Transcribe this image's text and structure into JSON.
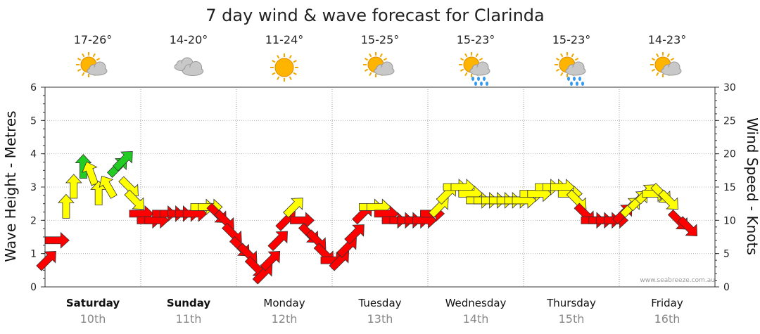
{
  "chart_data": {
    "type": "line",
    "title": "7 day wind & wave forecast for Clarinda",
    "ylabel_left": "Wave Height - Metres",
    "ylabel_right": "Wind Speed - Knots",
    "y_left_range": [
      0,
      6
    ],
    "y_left_ticks": [
      "0",
      "1",
      "2",
      "3",
      "4",
      "5",
      "6"
    ],
    "y_right_range": [
      0,
      30
    ],
    "y_right_ticks": [
      "0",
      "5",
      "10",
      "15",
      "20",
      "25",
      "30"
    ],
    "grid": true,
    "watermark": "www.seabreeze.com.au",
    "days": [
      {
        "day": "Saturday",
        "date": "10th",
        "temp": "17-26°",
        "icon": "partly-cloudy-icon",
        "bold": true
      },
      {
        "day": "Sunday",
        "date": "11th",
        "temp": "14-20°",
        "icon": "cloudy-icon",
        "bold": true
      },
      {
        "day": "Monday",
        "date": "12th",
        "temp": "11-24°",
        "icon": "sunny-icon",
        "bold": false
      },
      {
        "day": "Tuesday",
        "date": "13th",
        "temp": "15-25°",
        "icon": "partly-cloudy-icon",
        "bold": false
      },
      {
        "day": "Wednesday",
        "date": "14th",
        "temp": "15-23°",
        "icon": "showers-icon",
        "bold": false
      },
      {
        "day": "Thursday",
        "date": "15th",
        "temp": "15-23°",
        "icon": "showers-icon",
        "bold": false
      },
      {
        "day": "Friday",
        "date": "16th",
        "temp": "14-23°",
        "icon": "partly-cloudy-icon",
        "bold": false
      }
    ],
    "wind_series": {
      "name": "Wind Speed",
      "units": "knots",
      "colors": {
        "light": "#ff0000",
        "moderate": "#ffff00",
        "strong": "#22cc22"
      },
      "points": [
        {
          "t": 0.02,
          "speed": 4,
          "dir": 45,
          "color": "#ff0000"
        },
        {
          "t": 0.12,
          "speed": 7,
          "dir": 0,
          "color": "#ff0000"
        },
        {
          "t": 0.22,
          "speed": 12,
          "dir": 90,
          "color": "#ffff00"
        },
        {
          "t": 0.3,
          "speed": 15,
          "dir": 90,
          "color": "#ffff00"
        },
        {
          "t": 0.4,
          "speed": 18,
          "dir": 90,
          "color": "#22cc22"
        },
        {
          "t": 0.48,
          "speed": 17,
          "dir": 110,
          "color": "#ffff00"
        },
        {
          "t": 0.56,
          "speed": 14,
          "dir": 90,
          "color": "#ffff00"
        },
        {
          "t": 0.66,
          "speed": 15,
          "dir": 120,
          "color": "#ffff00"
        },
        {
          "t": 0.76,
          "speed": 18,
          "dir": 45,
          "color": "#22cc22"
        },
        {
          "t": 0.82,
          "speed": 19,
          "dir": 45,
          "color": "#22cc22"
        },
        {
          "t": 0.88,
          "speed": 15,
          "dir": 315,
          "color": "#ffff00"
        },
        {
          "t": 0.94,
          "speed": 13,
          "dir": 315,
          "color": "#ffff00"
        },
        {
          "t": 1.0,
          "speed": 11,
          "dir": 0,
          "color": "#ff0000"
        },
        {
          "t": 1.08,
          "speed": 10,
          "dir": 0,
          "color": "#ff0000"
        },
        {
          "t": 1.16,
          "speed": 10,
          "dir": 0,
          "color": "#ff0000"
        },
        {
          "t": 1.24,
          "speed": 11,
          "dir": 0,
          "color": "#ff0000"
        },
        {
          "t": 1.32,
          "speed": 11,
          "dir": 0,
          "color": "#ff0000"
        },
        {
          "t": 1.4,
          "speed": 11,
          "dir": 0,
          "color": "#ff0000"
        },
        {
          "t": 1.48,
          "speed": 11,
          "dir": 0,
          "color": "#ff0000"
        },
        {
          "t": 1.56,
          "speed": 11,
          "dir": 0,
          "color": "#ff0000"
        },
        {
          "t": 1.64,
          "speed": 12,
          "dir": 0,
          "color": "#ffff00"
        },
        {
          "t": 1.72,
          "speed": 12,
          "dir": 0,
          "color": "#ffff00"
        },
        {
          "t": 1.8,
          "speed": 11,
          "dir": 315,
          "color": "#ff0000"
        },
        {
          "t": 1.88,
          "speed": 10,
          "dir": 315,
          "color": "#ff0000"
        },
        {
          "t": 1.96,
          "speed": 8,
          "dir": 315,
          "color": "#ff0000"
        },
        {
          "t": 2.04,
          "speed": 6,
          "dir": 315,
          "color": "#ff0000"
        },
        {
          "t": 2.12,
          "speed": 5,
          "dir": 315,
          "color": "#ff0000"
        },
        {
          "t": 2.2,
          "speed": 3,
          "dir": 315,
          "color": "#ff0000"
        },
        {
          "t": 2.28,
          "speed": 2,
          "dir": 45,
          "color": "#ff0000"
        },
        {
          "t": 2.36,
          "speed": 4,
          "dir": 45,
          "color": "#ff0000"
        },
        {
          "t": 2.44,
          "speed": 7,
          "dir": 45,
          "color": "#ff0000"
        },
        {
          "t": 2.52,
          "speed": 10,
          "dir": 45,
          "color": "#ff0000"
        },
        {
          "t": 2.6,
          "speed": 12,
          "dir": 45,
          "color": "#ffff00"
        },
        {
          "t": 2.68,
          "speed": 10,
          "dir": 0,
          "color": "#ff0000"
        },
        {
          "t": 2.76,
          "speed": 8,
          "dir": 315,
          "color": "#ff0000"
        },
        {
          "t": 2.84,
          "speed": 7,
          "dir": 315,
          "color": "#ff0000"
        },
        {
          "t": 2.92,
          "speed": 5,
          "dir": 315,
          "color": "#ff0000"
        },
        {
          "t": 3.0,
          "speed": 4,
          "dir": 0,
          "color": "#ff0000"
        },
        {
          "t": 3.08,
          "speed": 4,
          "dir": 45,
          "color": "#ff0000"
        },
        {
          "t": 3.16,
          "speed": 6,
          "dir": 45,
          "color": "#ff0000"
        },
        {
          "t": 3.24,
          "speed": 8,
          "dir": 45,
          "color": "#ff0000"
        },
        {
          "t": 3.32,
          "speed": 11,
          "dir": 45,
          "color": "#ff0000"
        },
        {
          "t": 3.4,
          "speed": 12,
          "dir": 0,
          "color": "#ffff00"
        },
        {
          "t": 3.48,
          "speed": 12,
          "dir": 0,
          "color": "#ffff00"
        },
        {
          "t": 3.56,
          "speed": 11,
          "dir": 0,
          "color": "#ff0000"
        },
        {
          "t": 3.64,
          "speed": 10,
          "dir": 0,
          "color": "#ff0000"
        },
        {
          "t": 3.72,
          "speed": 10,
          "dir": 0,
          "color": "#ff0000"
        },
        {
          "t": 3.8,
          "speed": 10,
          "dir": 0,
          "color": "#ff0000"
        },
        {
          "t": 3.88,
          "speed": 10,
          "dir": 0,
          "color": "#ff0000"
        },
        {
          "t": 3.96,
          "speed": 10,
          "dir": 0,
          "color": "#ff0000"
        },
        {
          "t": 4.04,
          "speed": 11,
          "dir": 0,
          "color": "#ff0000"
        },
        {
          "t": 4.12,
          "speed": 12,
          "dir": 45,
          "color": "#ffff00"
        },
        {
          "t": 4.2,
          "speed": 14,
          "dir": 45,
          "color": "#ffff00"
        },
        {
          "t": 4.28,
          "speed": 15,
          "dir": 0,
          "color": "#ffff00"
        },
        {
          "t": 4.36,
          "speed": 15,
          "dir": 0,
          "color": "#ffff00"
        },
        {
          "t": 4.44,
          "speed": 14,
          "dir": 0,
          "color": "#ffff00"
        },
        {
          "t": 4.52,
          "speed": 13,
          "dir": 0,
          "color": "#ffff00"
        },
        {
          "t": 4.6,
          "speed": 13,
          "dir": 0,
          "color": "#ffff00"
        },
        {
          "t": 4.68,
          "speed": 13,
          "dir": 0,
          "color": "#ffff00"
        },
        {
          "t": 4.76,
          "speed": 13,
          "dir": 0,
          "color": "#ffff00"
        },
        {
          "t": 4.84,
          "speed": 13,
          "dir": 0,
          "color": "#ffff00"
        },
        {
          "t": 4.92,
          "speed": 13,
          "dir": 0,
          "color": "#ffff00"
        },
        {
          "t": 5.0,
          "speed": 13,
          "dir": 0,
          "color": "#ffff00"
        },
        {
          "t": 5.08,
          "speed": 14,
          "dir": 0,
          "color": "#ffff00"
        },
        {
          "t": 5.16,
          "speed": 14,
          "dir": 0,
          "color": "#ffff00"
        },
        {
          "t": 5.24,
          "speed": 15,
          "dir": 0,
          "color": "#ffff00"
        },
        {
          "t": 5.32,
          "speed": 15,
          "dir": 0,
          "color": "#ffff00"
        },
        {
          "t": 5.4,
          "speed": 15,
          "dir": 0,
          "color": "#ffff00"
        },
        {
          "t": 5.48,
          "speed": 14,
          "dir": 0,
          "color": "#ffff00"
        },
        {
          "t": 5.56,
          "speed": 13,
          "dir": 315,
          "color": "#ffff00"
        },
        {
          "t": 5.64,
          "speed": 11,
          "dir": 315,
          "color": "#ff0000"
        },
        {
          "t": 5.72,
          "speed": 10,
          "dir": 0,
          "color": "#ff0000"
        },
        {
          "t": 5.8,
          "speed": 10,
          "dir": 0,
          "color": "#ff0000"
        },
        {
          "t": 5.88,
          "speed": 10,
          "dir": 0,
          "color": "#ff0000"
        },
        {
          "t": 5.96,
          "speed": 10,
          "dir": 0,
          "color": "#ff0000"
        },
        {
          "t": 6.04,
          "speed": 11,
          "dir": 45,
          "color": "#ff0000"
        },
        {
          "t": 6.12,
          "speed": 12,
          "dir": 45,
          "color": "#ffff00"
        },
        {
          "t": 6.2,
          "speed": 13,
          "dir": 45,
          "color": "#ffff00"
        },
        {
          "t": 6.28,
          "speed": 14,
          "dir": 45,
          "color": "#ffff00"
        },
        {
          "t": 6.36,
          "speed": 14,
          "dir": 0,
          "color": "#ffff00"
        },
        {
          "t": 6.44,
          "speed": 14,
          "dir": 315,
          "color": "#ffff00"
        },
        {
          "t": 6.52,
          "speed": 13,
          "dir": 315,
          "color": "#ffff00"
        },
        {
          "t": 6.62,
          "speed": 10,
          "dir": 315,
          "color": "#ff0000"
        },
        {
          "t": 6.72,
          "speed": 9,
          "dir": 315,
          "color": "#ff0000"
        }
      ]
    }
  }
}
